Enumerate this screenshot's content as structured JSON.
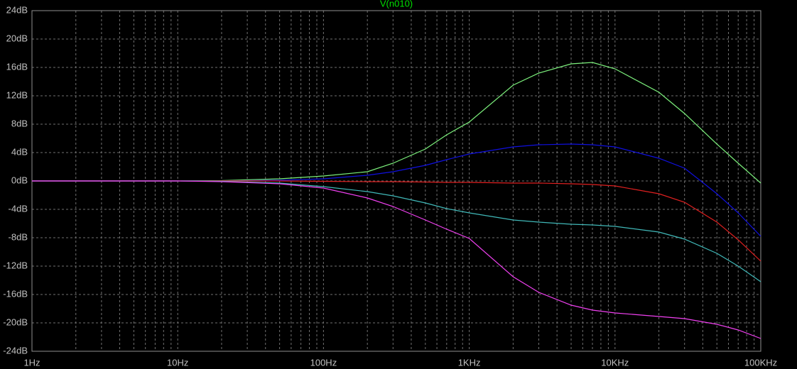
{
  "chart_data": {
    "type": "line",
    "title": "V(n010)",
    "title_color": "#00e000",
    "x": [
      1,
      10,
      20,
      50,
      100,
      200,
      300,
      500,
      700,
      1000,
      2000,
      3000,
      5000,
      7000,
      10000,
      20000,
      30000,
      50000,
      70000,
      100000
    ],
    "xlog": true,
    "xlim": [
      1,
      100000
    ],
    "xticks": [
      {
        "value": 1,
        "label": "1Hz"
      },
      {
        "value": 10,
        "label": "10Hz"
      },
      {
        "value": 100,
        "label": "100Hz"
      },
      {
        "value": 1000,
        "label": "1KHz"
      },
      {
        "value": 10000,
        "label": "10KHz"
      },
      {
        "value": 100000,
        "label": "100KHz"
      }
    ],
    "ylim": [
      -24,
      24
    ],
    "yticks": [
      {
        "value": 24,
        "label": "24dB"
      },
      {
        "value": 20,
        "label": "20dB"
      },
      {
        "value": 16,
        "label": "16dB"
      },
      {
        "value": 12,
        "label": "12dB"
      },
      {
        "value": 8,
        "label": "8dB"
      },
      {
        "value": 4,
        "label": "4dB"
      },
      {
        "value": 0,
        "label": "0dB"
      },
      {
        "value": -4,
        "label": "-4dB"
      },
      {
        "value": -8,
        "label": "-8dB"
      },
      {
        "value": -12,
        "label": "-12dB"
      },
      {
        "value": -16,
        "label": "-16dB"
      },
      {
        "value": -20,
        "label": "-20dB"
      },
      {
        "value": -24,
        "label": "-24dB"
      }
    ],
    "grid": true,
    "series": [
      {
        "color": "#7cf07c",
        "values": [
          0,
          0,
          0.05,
          0.3,
          0.7,
          1.3,
          2.5,
          4.5,
          6.5,
          8.3,
          13.5,
          15.2,
          16.5,
          16.7,
          15.8,
          12.5,
          9.5,
          5.2,
          2.5,
          -0.3
        ]
      },
      {
        "color": "#1010e0",
        "values": [
          0,
          0,
          0,
          0.1,
          0.3,
          0.8,
          1.3,
          2.2,
          3.0,
          3.8,
          4.8,
          5.1,
          5.2,
          5.1,
          4.8,
          3.2,
          1.8,
          -1.8,
          -4.5,
          -7.8
        ]
      },
      {
        "color": "#e02020",
        "values": [
          0,
          0,
          0,
          0,
          -0.05,
          -0.1,
          -0.1,
          -0.15,
          -0.2,
          -0.2,
          -0.3,
          -0.3,
          -0.4,
          -0.5,
          -0.7,
          -1.8,
          -3,
          -5.8,
          -8.3,
          -11.3
        ]
      },
      {
        "color": "#40b8b8",
        "values": [
          0,
          0,
          -0.05,
          -0.3,
          -0.8,
          -1.5,
          -2.1,
          -3.1,
          -3.9,
          -4.5,
          -5.5,
          -5.8,
          -6.1,
          -6.2,
          -6.4,
          -7.2,
          -8.2,
          -10.2,
          -12,
          -14.2
        ]
      },
      {
        "color": "#f040f0",
        "values": [
          0,
          0,
          -0.1,
          -0.4,
          -1.0,
          -2.4,
          -3.6,
          -5.5,
          -6.8,
          -8.1,
          -13.5,
          -15.7,
          -17.5,
          -18.2,
          -18.6,
          -19.1,
          -19.4,
          -20.2,
          -21,
          -22.2
        ]
      }
    ]
  }
}
